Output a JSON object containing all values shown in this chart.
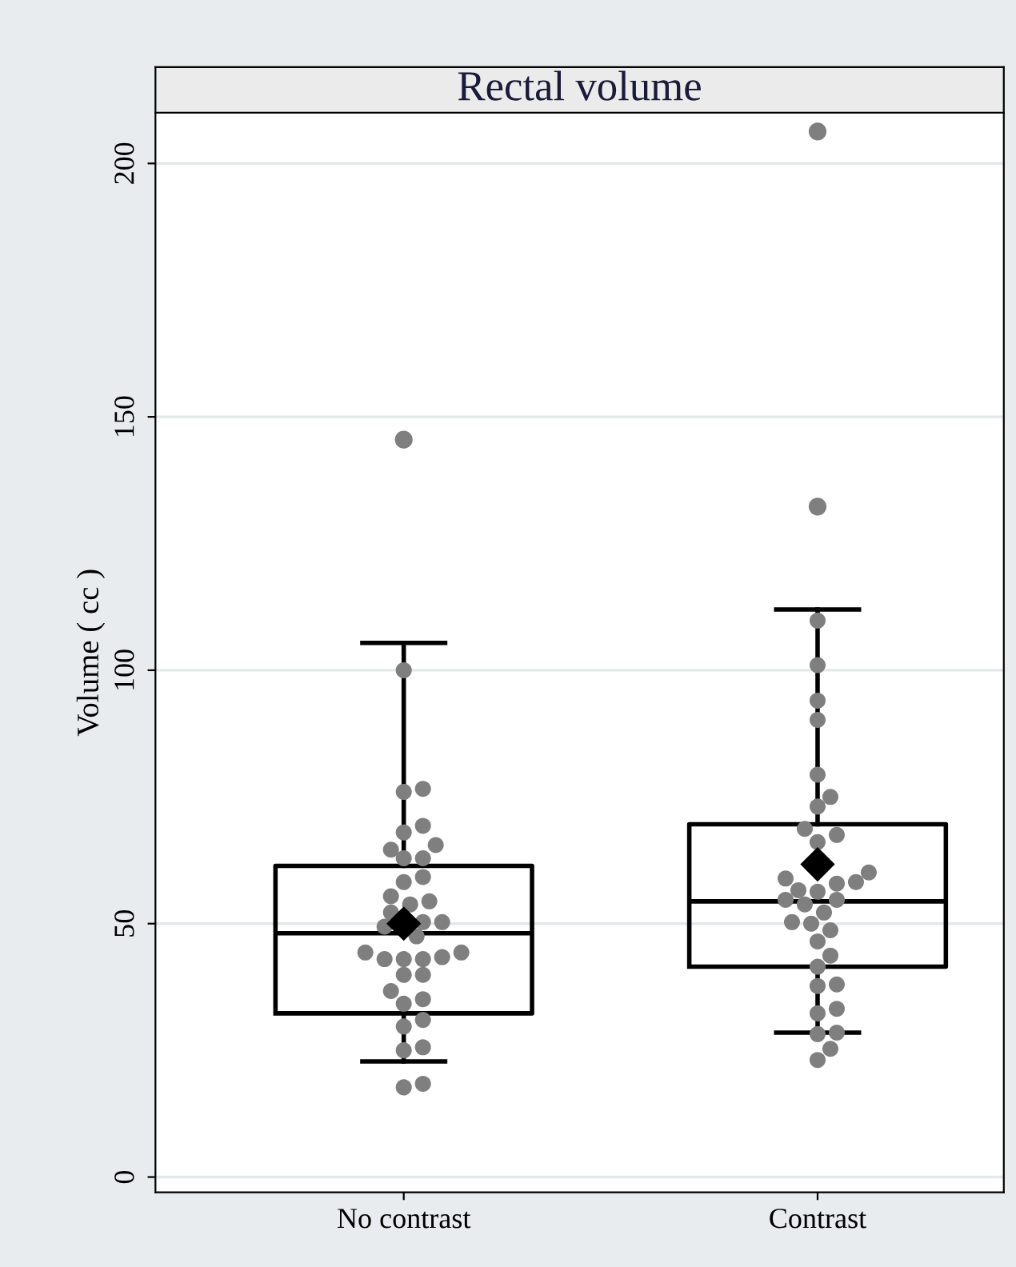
{
  "chart_data": {
    "type": "box",
    "title": "Rectal volume",
    "ylabel": "Volume ( cc )",
    "categories": [
      "No contrast",
      "Contrast"
    ],
    "boxes": [
      {
        "low": 22.8,
        "q1": 32.3,
        "median": 48.1,
        "q3": 61.4,
        "high": 105.4,
        "mean": 50,
        "outliers": [
          145.5
        ]
      },
      {
        "low": 28.5,
        "q1": 41.5,
        "median": 54.4,
        "q3": 69.6,
        "high": 112,
        "mean": 61.7,
        "outliers": [
          206.3,
          132.3
        ]
      }
    ],
    "series": [
      {
        "type": "scatter",
        "color": "#7f7f7f",
        "x": [
          "No contrast",
          "No contrast",
          "No contrast",
          "No contrast",
          "No contrast",
          "No contrast",
          "No contrast",
          "No contrast",
          "No contrast",
          "No contrast",
          "No contrast",
          "No contrast",
          "No contrast",
          "No contrast",
          "No contrast",
          "No contrast",
          "No contrast",
          "No contrast",
          "No contrast",
          "No contrast",
          "No contrast",
          "No contrast",
          "No contrast",
          "No contrast",
          "No contrast",
          "No contrast",
          "No contrast",
          "No contrast",
          "No contrast",
          "No contrast",
          "No contrast",
          "No contrast",
          "No contrast",
          "No contrast",
          "No contrast",
          "No contrast",
          "Contrast",
          "Contrast",
          "Contrast",
          "Contrast",
          "Contrast",
          "Contrast",
          "Contrast",
          "Contrast",
          "Contrast",
          "Contrast",
          "Contrast",
          "Contrast",
          "Contrast",
          "Contrast",
          "Contrast",
          "Contrast",
          "Contrast",
          "Contrast",
          "Contrast",
          "Contrast",
          "Contrast",
          "Contrast",
          "Contrast",
          "Contrast",
          "Contrast",
          "Contrast",
          "Contrast",
          "Contrast",
          "Contrast",
          "Contrast",
          "Contrast",
          "Contrast",
          "Contrast",
          "Contrast"
        ],
        "values": [
          100,
          76.6,
          76,
          69.3,
          68,
          64.6,
          65.5,
          62.9,
          62.9,
          58.2,
          59.2,
          55.4,
          53.8,
          54.4,
          52.2,
          50.3,
          49.4,
          47.5,
          50.3,
          44.3,
          44.3,
          43,
          43.4,
          43,
          43,
          39.9,
          39.9,
          34.2,
          36.7,
          35.1,
          31,
          29.7,
          25.6,
          25,
          18.4,
          17.7,
          109.8,
          101,
          94,
          90.2,
          79.4,
          73.1,
          75,
          66.1,
          67.5,
          68.7,
          60.1,
          57.9,
          58.9,
          58.2,
          54.7,
          56.6,
          54.7,
          56.3,
          52.2,
          50,
          50.3,
          53.8,
          48.7,
          43.7,
          46.5,
          41.5,
          37.7,
          38,
          33.2,
          32.3,
          25.3,
          28.2,
          28.5,
          23.1
        ]
      }
    ],
    "marker": "circle",
    "ylim": [
      -3,
      210
    ],
    "yticks": [
      0,
      50,
      100,
      150,
      200
    ],
    "grid": "y"
  }
}
